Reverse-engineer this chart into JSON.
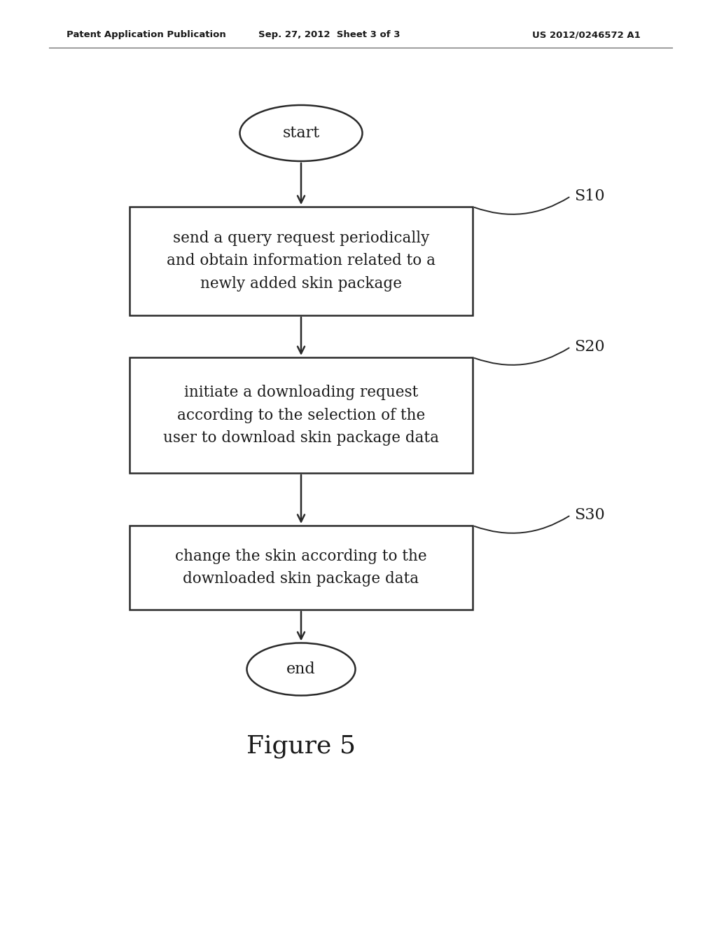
{
  "header_left": "Patent Application Publication",
  "header_center": "Sep. 27, 2012  Sheet 3 of 3",
  "header_right": "US 2012/0246572 A1",
  "figure_label": "Figure 5",
  "start_label": "start",
  "end_label": "end",
  "box1_text": "send a query request periodically\nand obtain information related to a\nnewly added skin package",
  "box2_text": "initiate a downloading request\naccording to the selection of the\nuser to download skin package data",
  "box3_text": "change the skin according to the\ndownloaded skin package data",
  "step_labels": [
    "S10",
    "S20",
    "S30"
  ],
  "bg_color": "#ffffff",
  "text_color": "#1a1a1a",
  "box_edge_color": "#2a2a2a",
  "line_color": "#2a2a2a",
  "header_line_color": "#555555"
}
